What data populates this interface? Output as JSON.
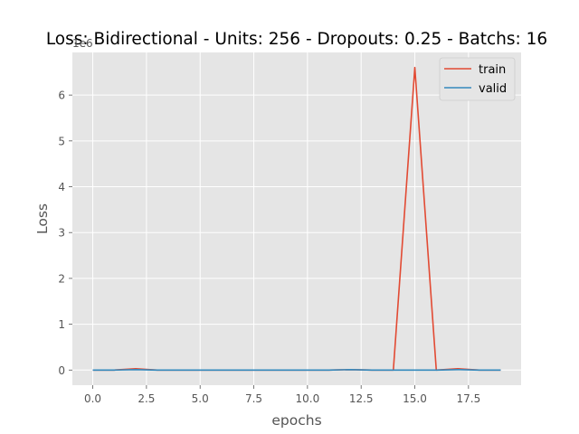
{
  "chart_data": {
    "type": "line",
    "title": "Loss: Bidirectional - Units: 256 - Dropouts: 0.25 - Batchs: 16",
    "xlabel": "epochs",
    "ylabel": "Loss",
    "y_multiplier_label": "1e6",
    "xlim": [
      -0.95,
      19.95
    ],
    "ylim": [
      -0.33,
      6.93
    ],
    "x_ticks": [
      0,
      2.5,
      5,
      7.5,
      10,
      12.5,
      15,
      17.5
    ],
    "x_tick_labels": [
      "0.0",
      "2.5",
      "5.0",
      "7.5",
      "10.0",
      "12.5",
      "15.0",
      "17.5"
    ],
    "y_ticks": [
      0,
      1,
      2,
      3,
      4,
      5,
      6
    ],
    "y_tick_labels": [
      "0",
      "1",
      "2",
      "3",
      "4",
      "5",
      "6"
    ],
    "grid": true,
    "legend_position": "top-right",
    "x": [
      0,
      1,
      2,
      3,
      4,
      5,
      6,
      7,
      8,
      9,
      10,
      11,
      12,
      13,
      14,
      15,
      16,
      17,
      18,
      19
    ],
    "series": [
      {
        "name": "train",
        "color": "#E24A33",
        "values": [
          0.0,
          0.0,
          0.03,
          0.0,
          0.0,
          0.0,
          0.0,
          0.0,
          0.0,
          0.0,
          0.0,
          0.0,
          0.01,
          0.0,
          0.0,
          6.6,
          0.0,
          0.03,
          0.0,
          0.0
        ]
      },
      {
        "name": "valid",
        "color": "#348ABD",
        "values": [
          0.0,
          0.0,
          0.01,
          0.0,
          0.0,
          0.0,
          0.0,
          0.0,
          0.0,
          0.0,
          0.0,
          0.0,
          0.01,
          0.0,
          0.0,
          0.0,
          0.0,
          0.01,
          0.0,
          0.0
        ]
      }
    ]
  }
}
